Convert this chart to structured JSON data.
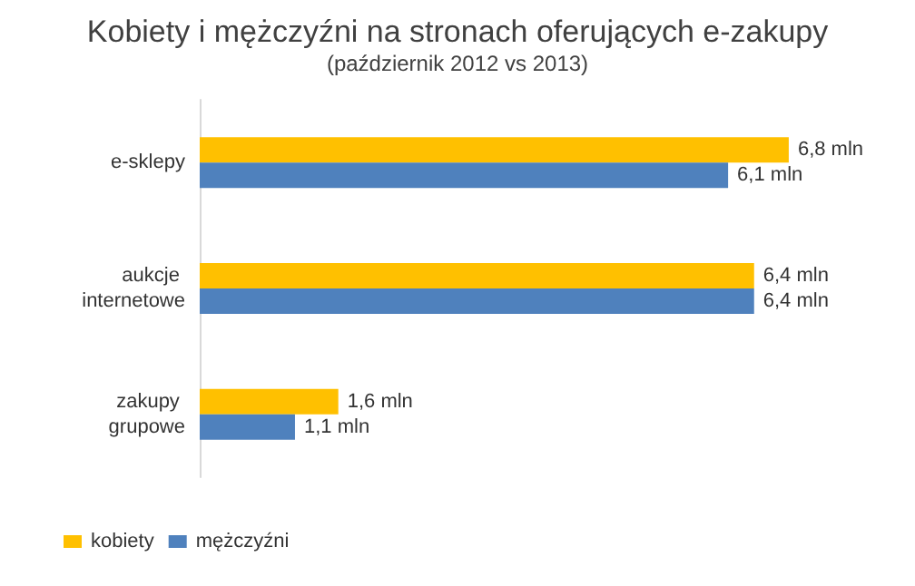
{
  "chart_data": {
    "type": "bar",
    "orientation": "horizontal",
    "title": "Kobiety i mężczyźni na stronach oferujących e-zakupy",
    "subtitle": "(październik 2012 vs 2013)",
    "categories": [
      "e-sklepy",
      "aukcje internetowe",
      "zakupy grupowe"
    ],
    "series": [
      {
        "name": "kobiety",
        "color": "#ffc000",
        "values": [
          6.8,
          6.4,
          1.6
        ],
        "value_labels": [
          "6,8 mln",
          "6,4 mln",
          "1,6 mln"
        ]
      },
      {
        "name": "mężczyźni",
        "color": "#4f81bd",
        "values": [
          6.1,
          6.4,
          1.1
        ],
        "value_labels": [
          "6,1 mln",
          "6,4 mln",
          "1,1 mln"
        ]
      }
    ],
    "grid": false,
    "legend": "bottom left"
  }
}
